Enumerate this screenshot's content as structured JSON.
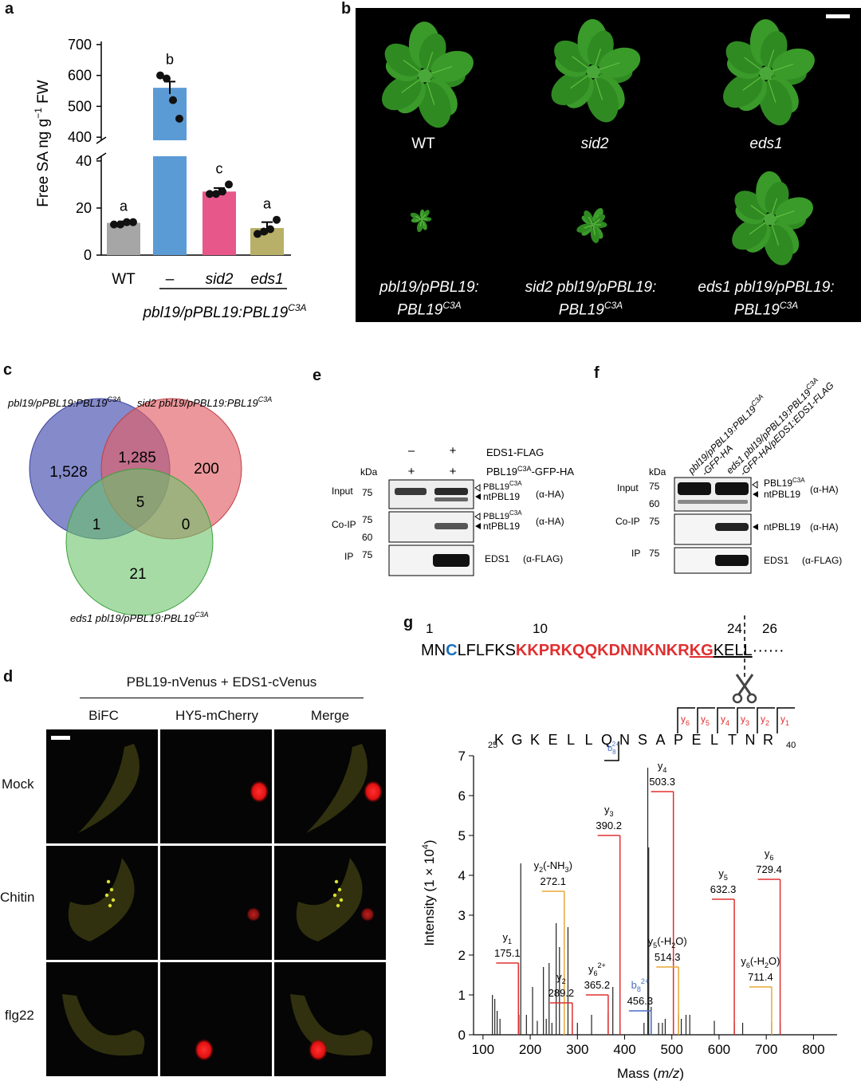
{
  "panel_labels": {
    "a": "a",
    "b": "b",
    "c": "c",
    "d": "d",
    "e": "e",
    "f": "f",
    "g": "g"
  },
  "colors": {
    "wt": "#a6a6a6",
    "minus": "#5b9bd5",
    "sid2": "#e8578a",
    "eds1": "#b8b068",
    "venn_blue": "#5c63b8",
    "venn_red": "#e06066",
    "venn_green": "#6bc36b",
    "seq_red": "#e03030",
    "seq_blue": "#1a6fbf",
    "y_ion": "#e03030",
    "yh2o": "#e8a838",
    "b_ion": "#4a6fc4"
  },
  "chart_data": [
    {
      "type": "bar",
      "ylabel_parts": {
        "main": "Free SA ng g",
        "sup": "−1",
        "rest": " FW"
      },
      "categories": [
        "WT",
        "–",
        "sid2",
        "eds1"
      ],
      "values": [
        13.7,
        560,
        27,
        11.5
      ],
      "errors": [
        0.6,
        20,
        1.5,
        2.5
      ],
      "points": [
        [
          13,
          13,
          14,
          14
        ],
        [
          600,
          590,
          520,
          460
        ],
        [
          26,
          26,
          27,
          30
        ],
        [
          9,
          10,
          11,
          15
        ]
      ],
      "letters": [
        "a",
        "b",
        "c",
        "a"
      ],
      "yticks_low": [
        "0",
        "20",
        "40"
      ],
      "yticks_high": [
        "400",
        "500",
        "600",
        "700"
      ],
      "ylim_low": [
        0,
        42
      ],
      "ylim_high": [
        390,
        710
      ],
      "group_label": {
        "text": "pbl19/pPBL19:PBL19",
        "sup": "C3A"
      }
    },
    {
      "type": "bar",
      "title": "",
      "ylabel": "Intensity (1 × 10⁴)",
      "ylabel_parts": {
        "main": "Intensity (1 × 10",
        "sup": "4",
        "rest": ")"
      },
      "xlabel_parts": {
        "main": "Mass (",
        "it": "m/z",
        "rest": ")"
      },
      "xlim": [
        80,
        850
      ],
      "ylim": [
        0,
        7
      ],
      "xticks": [
        "100",
        "200",
        "300",
        "400",
        "500",
        "600",
        "700",
        "800"
      ],
      "yticks": [
        "0",
        "1",
        "2",
        "3",
        "4",
        "5",
        "6",
        "7"
      ],
      "peaks": [
        [
          120,
          1.0
        ],
        [
          125,
          0.9
        ],
        [
          130,
          0.6
        ],
        [
          136,
          0.4
        ],
        [
          175.1,
          1.8
        ],
        [
          176,
          0.5
        ],
        [
          180,
          4.3
        ],
        [
          192,
          0.5
        ],
        [
          205,
          1.2
        ],
        [
          215,
          0.35
        ],
        [
          228,
          1.7
        ],
        [
          234,
          0.4
        ],
        [
          240,
          1.8
        ],
        [
          246,
          0.3
        ],
        [
          255,
          2.8
        ],
        [
          262,
          2.2
        ],
        [
          272.1,
          0.35
        ],
        [
          280,
          2.7
        ],
        [
          289.2,
          0.3
        ],
        [
          300,
          0.3
        ],
        [
          330,
          0.5
        ],
        [
          365.2,
          0.55
        ],
        [
          375,
          1.2
        ],
        [
          390.2,
          0.3
        ],
        [
          441,
          0.3
        ],
        [
          449,
          6.7
        ],
        [
          451,
          4.7
        ],
        [
          456.3,
          0.7
        ],
        [
          472,
          0.3
        ],
        [
          480,
          0.3
        ],
        [
          486,
          0.4
        ],
        [
          503.3,
          0.4
        ],
        [
          514,
          0.5
        ],
        [
          520,
          0.4
        ],
        [
          530,
          0.5
        ],
        [
          538,
          0.5
        ],
        [
          590,
          0.35
        ],
        [
          632.3,
          0.3
        ],
        [
          650,
          0.3
        ],
        [
          711.4,
          0.3
        ],
        [
          729.4,
          0.3
        ]
      ],
      "labeled_ions": [
        {
          "ion": "y",
          "sub": "1",
          "sup": "",
          "suffix": "",
          "value": "175.1",
          "mz": 175.1,
          "inten": 1.8,
          "color": "y_ion"
        },
        {
          "ion": "y",
          "sub": "2",
          "sup": "",
          "suffix": "(-NH",
          "value": "272.1",
          "mz": 272.1,
          "inten": 3.6,
          "color": "yh2o"
        },
        {
          "ion": "y",
          "sub": "2",
          "sup": "",
          "suffix": "",
          "value": "289.2",
          "mz": 289.2,
          "inten": 0.8,
          "color": "y_ion"
        },
        {
          "ion": "y",
          "sub": "6",
          "sup": "2+",
          "suffix": "",
          "value": "365.2",
          "mz": 365.2,
          "inten": 1.0,
          "color": "y_ion"
        },
        {
          "ion": "y",
          "sub": "3",
          "sup": "",
          "suffix": "",
          "value": "390.2",
          "mz": 390.2,
          "inten": 5.0,
          "color": "y_ion"
        },
        {
          "ion": "b",
          "sub": "8",
          "sup": "2+",
          "suffix": "",
          "value": "456.3",
          "mz": 456.3,
          "inten": 0.6,
          "color": "b_ion"
        },
        {
          "ion": "y",
          "sub": "4",
          "sup": "",
          "suffix": "",
          "value": "503.3",
          "mz": 503.3,
          "inten": 6.1,
          "color": "y_ion"
        },
        {
          "ion": "y",
          "sub": "5",
          "sup": "",
          "suffix": "(-H",
          "value": "514.3",
          "mz": 514.3,
          "inten": 1.7,
          "color": "yh2o"
        },
        {
          "ion": "y",
          "sub": "5",
          "sup": "",
          "suffix": "",
          "value": "632.3",
          "mz": 632.3,
          "inten": 3.4,
          "color": "y_ion"
        },
        {
          "ion": "y",
          "sub": "6",
          "sup": "",
          "suffix": "(-H",
          "value": "711.4",
          "mz": 711.4,
          "inten": 1.2,
          "color": "yh2o"
        },
        {
          "ion": "y",
          "sub": "6",
          "sup": "",
          "suffix": "",
          "value": "729.4",
          "mz": 729.4,
          "inten": 3.9,
          "color": "y_ion"
        }
      ]
    }
  ],
  "panel_b": {
    "wt": "WT",
    "sid2": "sid2",
    "eds1": "eds1",
    "c1_line1": "pbl19/pPBL19:",
    "c1_line2": "PBL19",
    "sup": "C3A",
    "c2_line1": "sid2 pbl19/pPBL19:",
    "c2_line2": "PBL19",
    "c3_line1": "eds1 pbl19/pPBL19:",
    "c3_line2": "PBL19"
  },
  "venn": {
    "label_blue": "pbl19/pPBL19:PBL19",
    "label_red": "sid2 pbl19/pPBL19:PBL19",
    "label_green": "eds1 pbl19/pPBL19:PBL19",
    "sup": "C3A",
    "blue_only": "1,528",
    "blue_red": "1,285",
    "red_only": "200",
    "all": "5",
    "blue_green": "1",
    "red_green": "0",
    "green_only": "21"
  },
  "panel_e": {
    "minus": "–",
    "plus": "+",
    "eds1_flag": "EDS1-FLAG",
    "pbl19_tag_pre": "PBL19",
    "pbl19_tag_post": "-GFP-HA",
    "sup": "C3A",
    "kda": "kDa",
    "input": "Input",
    "coip": "Co-IP",
    "ip": "IP",
    "m75": "75",
    "m60": "60",
    "pbl19": "PBL19",
    "ntpbl19": "ntPBL19",
    "ha": "(α-HA)",
    "eds1": "EDS1",
    "flag": "(α-FLAG)"
  },
  "panel_f": {
    "lane1_a": "pbl19/pPBL19:PBL19",
    "lane1_b": "-GFP-HA",
    "lane2_a": "eds1 pbl19/pPBL19:PBL19",
    "lane2_b": "-GFP-HA/pEDS1:EDS1-FLAG"
  },
  "panel_d": {
    "header": "PBL19-nVenus + EDS1-cVenus",
    "col1": "BiFC",
    "col2": "HY5-mCherry",
    "col3": "Merge",
    "row1": "Mock",
    "row2": "Chitin",
    "row3": "flg22"
  },
  "panel_g": {
    "pos1": "1",
    "pos10": "10",
    "pos24": "24",
    "pos26": "26",
    "seq_a": "MN",
    "seq_c": "C",
    "seq_b": "LFLFKS",
    "seq_red": "KKPRKQQKDNNKNK",
    "seq_r": "R",
    "seq_kg": "KG",
    "seq_kell": "KELL",
    "dots": "······",
    "pep_start": "25",
    "pep_end": "40",
    "peptide": [
      "K",
      "G",
      "K",
      "E",
      "L",
      "L",
      "Q",
      "N",
      "S",
      "A",
      "P",
      "E",
      "L",
      "T",
      "N",
      "R"
    ],
    "y_ions": [
      "6",
      "5",
      "4",
      "3",
      "2",
      "1"
    ],
    "b_label": "b",
    "b_sub": "8",
    "b_sup": "2+"
  }
}
